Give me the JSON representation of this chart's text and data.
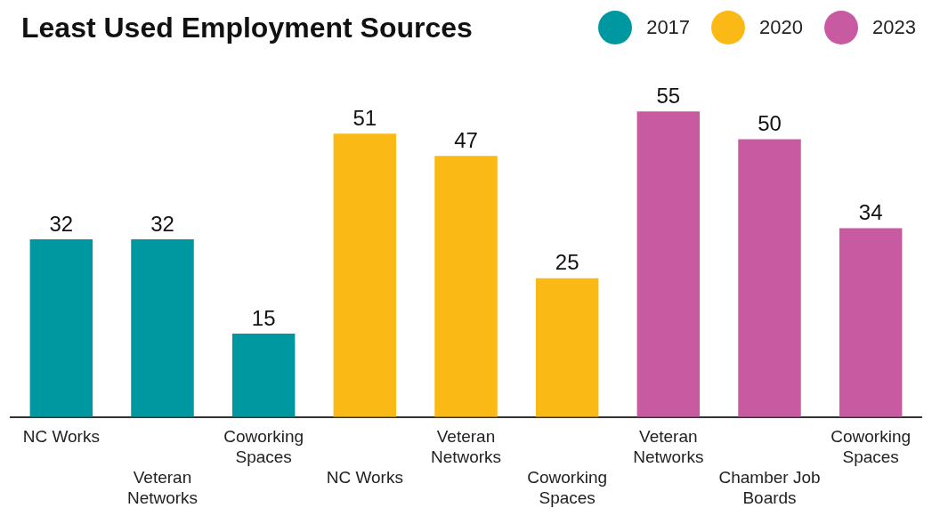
{
  "chart_data": {
    "type": "bar",
    "title": "Least Used Employment Sources",
    "categories": [
      "NC Works",
      "Veteran Networks",
      "Coworking Spaces",
      "NC Works",
      "Veteran Networks",
      "Coworking Spaces",
      "Veteran Networks",
      "Chamber Job Boards",
      "Coworking Spaces"
    ],
    "series": [
      {
        "name": "2017",
        "color": "#0098a0",
        "values": [
          32,
          32,
          15,
          null,
          null,
          null,
          null,
          null,
          null
        ]
      },
      {
        "name": "2020",
        "color": "#fbb915",
        "values": [
          null,
          null,
          null,
          51,
          47,
          25,
          null,
          null,
          null
        ]
      },
      {
        "name": "2023",
        "color": "#c75aa0",
        "values": [
          null,
          null,
          null,
          null,
          null,
          null,
          55,
          50,
          34
        ]
      }
    ],
    "data_labels": true,
    "grid": false,
    "legend": "top right",
    "tick_labels": "x"
  }
}
